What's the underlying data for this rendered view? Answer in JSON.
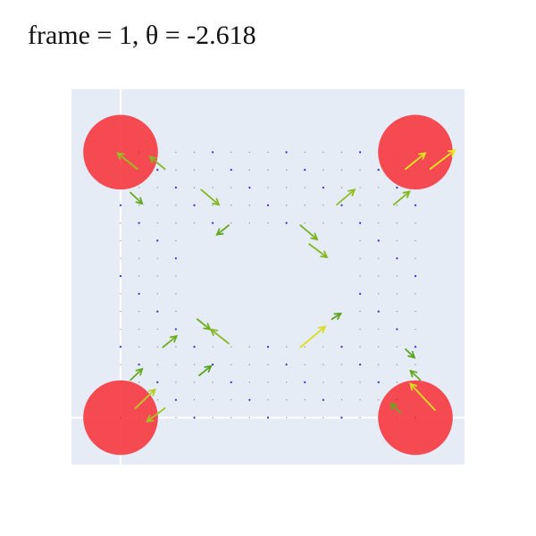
{
  "title": "frame = 1, θ = -2.618",
  "chart_data": {
    "type": "scatter",
    "title": "frame = 1, θ = -2.618",
    "xlabel": "",
    "ylabel": "",
    "xlim": [
      -0.5,
      3.5
    ],
    "ylim": [
      -0.5,
      3.5
    ],
    "grid": true,
    "legend": "none",
    "colors": {
      "background": "#e5ecf6",
      "grid": "#ffffff",
      "obstacle": "#f7333b",
      "arrow_low": "#2a8a24",
      "arrow_high": "#f4ee1f",
      "dot": "#1a1ad0"
    },
    "obstacles": [
      {
        "x": 0,
        "y": 0,
        "r": 0.38
      },
      {
        "x": 3,
        "y": 0,
        "r": 0.38
      },
      {
        "x": 0,
        "y": 2.83,
        "r": 0.38
      },
      {
        "x": 3,
        "y": 2.83,
        "r": 0.38
      }
    ],
    "vectors": [
      {
        "x": 0.17,
        "y": 2.65,
        "u": -0.2,
        "v": 0.17,
        "m": 0.55
      },
      {
        "x": 0.45,
        "y": 2.65,
        "u": -0.15,
        "v": 0.13,
        "m": 0.45
      },
      {
        "x": 2.9,
        "y": 2.65,
        "u": 0.2,
        "v": 0.17,
        "m": 0.9
      },
      {
        "x": 3.15,
        "y": 2.65,
        "u": 0.25,
        "v": 0.2,
        "m": 0.95
      },
      {
        "x": 0.1,
        "y": 2.4,
        "u": 0.12,
        "v": -0.12,
        "m": 0.3
      },
      {
        "x": 0.82,
        "y": 2.43,
        "u": 0.18,
        "v": -0.16,
        "m": 0.45
      },
      {
        "x": 2.2,
        "y": 2.27,
        "u": 0.18,
        "v": 0.16,
        "m": 0.5
      },
      {
        "x": 2.78,
        "y": 2.27,
        "u": 0.16,
        "v": 0.14,
        "m": 0.45
      },
      {
        "x": 1.1,
        "y": 2.05,
        "u": -0.12,
        "v": -0.1,
        "m": 0.3
      },
      {
        "x": 1.83,
        "y": 2.05,
        "u": 0.17,
        "v": -0.15,
        "m": 0.4
      },
      {
        "x": 1.92,
        "y": 1.85,
        "u": 0.18,
        "v": -0.14,
        "m": 0.45
      },
      {
        "x": 0.78,
        "y": 1.05,
        "u": 0.13,
        "v": -0.11,
        "m": 0.35
      },
      {
        "x": 1.1,
        "y": 0.79,
        "u": -0.18,
        "v": 0.15,
        "m": 0.45
      },
      {
        "x": 2.15,
        "y": 1.05,
        "u": 0.09,
        "v": 0.06,
        "m": 0.25
      },
      {
        "x": 1.83,
        "y": 0.75,
        "u": 0.25,
        "v": 0.22,
        "m": 0.85
      },
      {
        "x": 0.43,
        "y": 0.75,
        "u": 0.14,
        "v": 0.12,
        "m": 0.35
      },
      {
        "x": 0.1,
        "y": 0.4,
        "u": 0.12,
        "v": 0.12,
        "m": 0.3
      },
      {
        "x": 0.8,
        "y": 0.45,
        "u": 0.12,
        "v": 0.1,
        "m": 0.25
      },
      {
        "x": 0.15,
        "y": 0.1,
        "u": 0.2,
        "v": 0.2,
        "m": 0.7
      },
      {
        "x": 0.45,
        "y": 0.1,
        "u": -0.18,
        "v": -0.14,
        "m": 0.6
      },
      {
        "x": 2.85,
        "y": 0.05,
        "u": -0.1,
        "v": 0.1,
        "m": 0.3
      },
      {
        "x": 3.2,
        "y": 0.08,
        "u": -0.25,
        "v": 0.28,
        "m": 0.85
      },
      {
        "x": 2.9,
        "y": 0.73,
        "u": 0.09,
        "v": -0.09,
        "m": 0.25
      },
      {
        "x": 3.05,
        "y": 0.4,
        "u": -0.1,
        "v": 0.1,
        "m": 0.3
      }
    ]
  }
}
